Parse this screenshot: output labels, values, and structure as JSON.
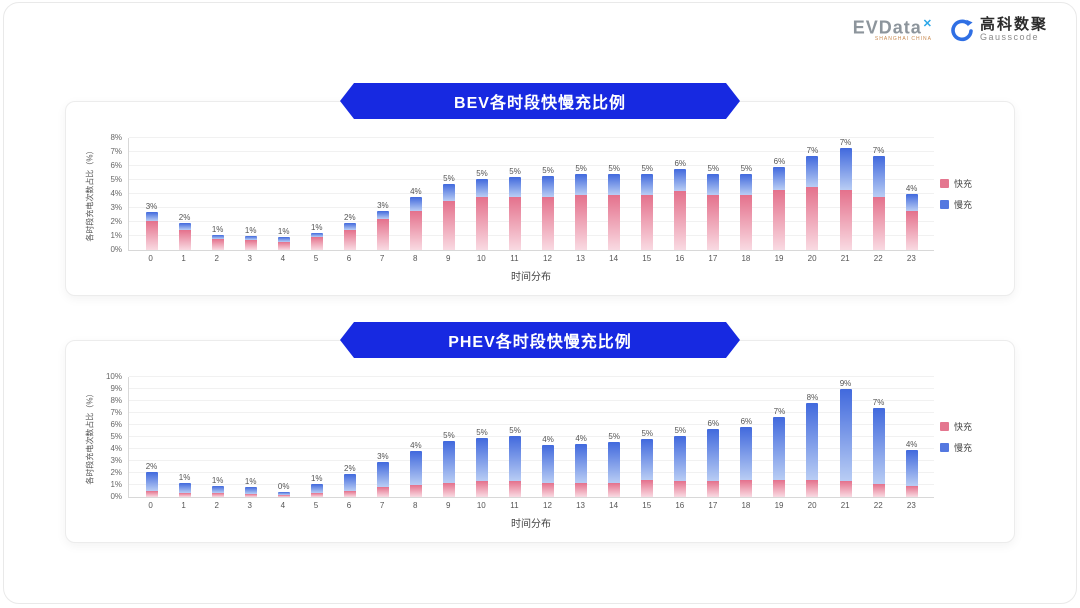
{
  "header": {
    "evdata": {
      "text": "EVData",
      "sup": "✕",
      "subtext": "SHANGHAI CHINA"
    },
    "gausscode": {
      "cn": "高科数聚",
      "en": "Gausscode"
    }
  },
  "colors": {
    "banner": "#1729e1",
    "fast_top": "#e4718c",
    "fast_bottom": "#f9dae2",
    "slow_top": "#4169dd",
    "slow_bottom": "#b9cdf4",
    "fast_solid": "#e4768f",
    "slow_solid": "#5478e0"
  },
  "chart_data": [
    {
      "type": "bar",
      "stacked": true,
      "title": "BEV各时段快慢充比例",
      "xlabel": "时间分布",
      "ylabel": "各时段充电次数占比（%）",
      "ylim": [
        0,
        8
      ],
      "ytick_step": 1,
      "grid": true,
      "legend_position": "right",
      "categories": [
        "0",
        "1",
        "2",
        "3",
        "4",
        "5",
        "6",
        "7",
        "8",
        "9",
        "10",
        "11",
        "12",
        "13",
        "14",
        "15",
        "16",
        "17",
        "18",
        "19",
        "20",
        "21",
        "22",
        "23"
      ],
      "labels": [
        "3%",
        "2%",
        "1%",
        "1%",
        "1%",
        "1%",
        "2%",
        "3%",
        "4%",
        "5%",
        "5%",
        "5%",
        "5%",
        "5%",
        "5%",
        "5%",
        "6%",
        "5%",
        "5%",
        "6%",
        "7%",
        "7%",
        "7%",
        "4%"
      ],
      "series": [
        {
          "name": "快充",
          "values": [
            2.1,
            1.4,
            0.8,
            0.7,
            0.6,
            0.9,
            1.4,
            2.2,
            2.8,
            3.5,
            3.8,
            3.8,
            3.8,
            3.9,
            3.9,
            3.9,
            4.2,
            3.9,
            3.9,
            4.3,
            4.5,
            4.3,
            3.8,
            2.8
          ]
        },
        {
          "name": "慢充",
          "values": [
            0.6,
            0.5,
            0.3,
            0.3,
            0.3,
            0.3,
            0.5,
            0.6,
            1.0,
            1.2,
            1.3,
            1.4,
            1.5,
            1.5,
            1.5,
            1.5,
            1.6,
            1.5,
            1.5,
            1.6,
            2.2,
            3.0,
            2.9,
            1.2
          ]
        }
      ]
    },
    {
      "type": "bar",
      "stacked": true,
      "title": "PHEV各时段快慢充比例",
      "xlabel": "时间分布",
      "ylabel": "各时段充电次数占比（%）",
      "ylim": [
        0,
        10
      ],
      "ytick_step": 1,
      "grid": true,
      "legend_position": "right",
      "categories": [
        "0",
        "1",
        "2",
        "3",
        "4",
        "5",
        "6",
        "7",
        "8",
        "9",
        "10",
        "11",
        "12",
        "13",
        "14",
        "15",
        "16",
        "17",
        "18",
        "19",
        "20",
        "21",
        "22",
        "23"
      ],
      "labels": [
        "2%",
        "1%",
        "1%",
        "1%",
        "0%",
        "1%",
        "2%",
        "3%",
        "4%",
        "5%",
        "5%",
        "5%",
        "4%",
        "4%",
        "5%",
        "5%",
        "5%",
        "6%",
        "6%",
        "7%",
        "8%",
        "9%",
        "7%",
        "4%"
      ],
      "series": [
        {
          "name": "快充",
          "values": [
            0.5,
            0.3,
            0.3,
            0.25,
            0.2,
            0.3,
            0.5,
            0.8,
            1.0,
            1.2,
            1.3,
            1.3,
            1.2,
            1.2,
            1.2,
            1.4,
            1.3,
            1.3,
            1.4,
            1.4,
            1.4,
            1.3,
            1.1,
            0.9
          ]
        },
        {
          "name": "慢充",
          "values": [
            1.6,
            0.9,
            0.6,
            0.55,
            0.2,
            0.8,
            1.4,
            2.1,
            2.8,
            3.5,
            3.6,
            3.8,
            3.1,
            3.2,
            3.4,
            3.4,
            3.8,
            4.4,
            4.4,
            5.3,
            6.4,
            7.7,
            6.3,
            3.0
          ]
        }
      ]
    }
  ]
}
